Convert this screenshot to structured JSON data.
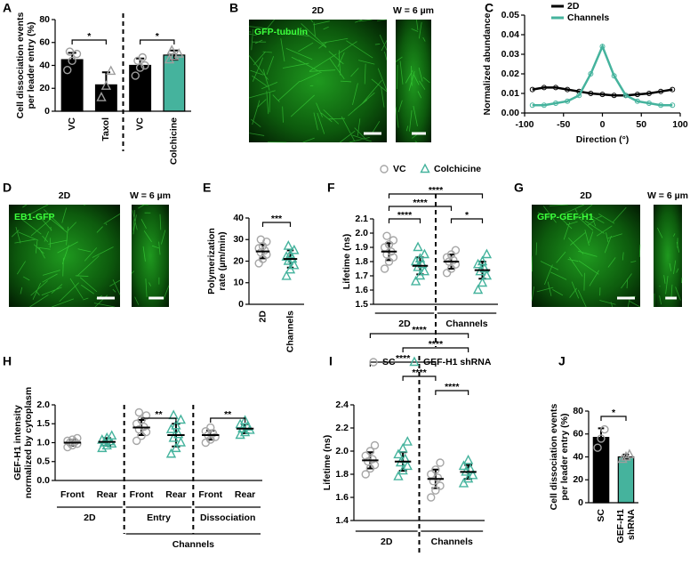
{
  "chart_data": [
    {
      "type": "bar",
      "panel": "A",
      "ylabel": [
        "Cell dissociation events",
        "per leader entry (%)"
      ],
      "ylim": [
        0,
        80
      ],
      "yticks": [
        0,
        20,
        40,
        60,
        80
      ],
      "point_color": "#9e9e9e",
      "groups": [
        {
          "label": "VC",
          "color": "#000000",
          "marker": "circle",
          "mean": 45,
          "sd": 6,
          "points": [
            36,
            44,
            50,
            52
          ]
        },
        {
          "label": "Taxol",
          "color": "#000000",
          "marker": "triangle",
          "mean": 23,
          "sd": 11,
          "points": [
            12,
            22,
            35
          ]
        },
        {
          "label": "VC",
          "color": "#000000",
          "marker": "circle",
          "mean": 40,
          "sd": 6,
          "points": [
            31,
            38,
            40,
            44,
            47
          ]
        },
        {
          "label": "Colchicine",
          "color": "#45b39d",
          "marker": "triangle",
          "mean": 49,
          "sd": 4,
          "points": [
            45,
            48,
            50,
            53
          ]
        }
      ],
      "separators_after": [
        1
      ],
      "brackets": [
        {
          "from": 0,
          "to": 1,
          "label": "*"
        },
        {
          "from": 2,
          "to": 3,
          "label": "*"
        }
      ]
    },
    {
      "type": "image",
      "panel": "B",
      "images": [
        {
          "title": "2D",
          "stain": "GFP-tubulin"
        },
        {
          "title": "W = 6 µm"
        }
      ]
    },
    {
      "type": "line",
      "panel": "C",
      "xlabel": "Direction (°)",
      "ylabel": "Normalized abundance",
      "xlim": [
        -100,
        100
      ],
      "xticks": [
        -100,
        -50,
        0,
        50,
        100
      ],
      "ylim": [
        0,
        0.05
      ],
      "yticks": [
        {
          "value": 0,
          "label": "0.00"
        },
        {
          "value": 0.01,
          "label": "0.01"
        },
        {
          "value": 0.02,
          "label": "0.02"
        },
        {
          "value": 0.03,
          "label": "0.03"
        },
        {
          "value": 0.04,
          "label": "0.04"
        },
        {
          "value": 0.05,
          "label": "0.05"
        }
      ],
      "x": [
        -90,
        -75,
        -60,
        -45,
        -30,
        -15,
        0,
        15,
        30,
        45,
        60,
        75,
        90
      ],
      "series": [
        {
          "name": "2D",
          "color": "#000000",
          "values": [
            0.012,
            0.013,
            0.013,
            0.012,
            0.011,
            0.01,
            0.0095,
            0.009,
            0.009,
            0.0095,
            0.01,
            0.011,
            0.012
          ]
        },
        {
          "name": "Channels",
          "color": "#45b39d",
          "values": [
            0.004,
            0.004,
            0.005,
            0.006,
            0.009,
            0.02,
            0.034,
            0.019,
            0.009,
            0.006,
            0.005,
            0.004,
            0.004
          ]
        }
      ]
    },
    {
      "type": "image",
      "panel": "D",
      "images": [
        {
          "title": "2D",
          "stain": "EB1-GFP"
        },
        {
          "title": "W = 6 µm"
        }
      ]
    },
    {
      "type": "dotplot",
      "panel": "E",
      "ylabel": [
        "Polymerization",
        "rate (µm/min)"
      ],
      "ylim": [
        0,
        40
      ],
      "yticks": [
        0,
        10,
        20,
        30,
        40
      ],
      "groups": [
        {
          "label": "2D",
          "color": "#a6a6a6",
          "marker": "circle",
          "mean": 24.5,
          "sd": 3.2,
          "points": [
            19,
            21,
            23,
            24,
            25,
            26,
            27,
            29,
            30
          ]
        },
        {
          "label": "Channels",
          "color": "#45b39d",
          "marker": "triangle",
          "mean": 21,
          "sd": 4,
          "points": [
            13,
            16,
            18,
            20,
            21,
            22,
            23,
            25,
            27
          ]
        }
      ],
      "brackets": [
        {
          "from": 0,
          "to": 1,
          "label": "***"
        }
      ]
    },
    {
      "type": "dotplot",
      "panel": "F",
      "ylabel": "Lifetime (ns)",
      "ylim": [
        1.5,
        2.1
      ],
      "yticks": [
        1.5,
        1.6,
        1.7,
        1.8,
        1.9,
        {
          "value": 2,
          "label": "2.0"
        },
        2.1
      ],
      "legend": [
        {
          "name": "VC",
          "color": "#a6a6a6",
          "marker": "circle"
        },
        {
          "name": "Colchicine",
          "color": "#45b39d",
          "marker": "triangle"
        }
      ],
      "groups": [
        {
          "color": "#a6a6a6",
          "marker": "circle",
          "mean": 1.87,
          "sd": 0.06,
          "points": [
            1.75,
            1.8,
            1.83,
            1.85,
            1.87,
            1.9,
            1.92,
            1.95,
            1.98
          ]
        },
        {
          "color": "#45b39d",
          "marker": "triangle",
          "mean": 1.77,
          "sd": 0.06,
          "points": [
            1.66,
            1.7,
            1.73,
            1.76,
            1.78,
            1.8,
            1.82,
            1.85,
            1.9
          ]
        },
        {
          "color": "#a6a6a6",
          "marker": "circle",
          "mean": 1.8,
          "sd": 0.05,
          "points": [
            1.72,
            1.75,
            1.78,
            1.8,
            1.81,
            1.83,
            1.85,
            1.88
          ]
        },
        {
          "color": "#45b39d",
          "marker": "triangle",
          "mean": 1.74,
          "sd": 0.06,
          "points": [
            1.6,
            1.65,
            1.7,
            1.73,
            1.75,
            1.78,
            1.8,
            1.85
          ]
        }
      ],
      "separators_after": [
        1
      ],
      "brackets": [
        {
          "from": 0,
          "to": 3,
          "label": "****"
        },
        {
          "from": 0,
          "to": 2,
          "label": "****"
        },
        {
          "from": 0,
          "to": 1,
          "label": "****"
        },
        {
          "from": 2,
          "to": 3,
          "label": "*"
        }
      ],
      "group_labels": [
        {
          "label": "2D",
          "from": 0,
          "to": 1,
          "level": 1
        },
        {
          "label": "Channels",
          "from": 2,
          "to": 3,
          "level": 1
        }
      ]
    },
    {
      "type": "image",
      "panel": "G",
      "images": [
        {
          "title": "2D",
          "stain": "GFP-GEF-H1"
        },
        {
          "title": "W = 6 µm"
        }
      ]
    },
    {
      "type": "dotplot",
      "panel": "H",
      "ylabel": [
        "GEF-H1 intensity",
        "normalized by cytoplasm"
      ],
      "ylim": [
        0,
        2
      ],
      "yticks": [
        {
          "value": 0,
          "label": "0.0"
        },
        0.5,
        {
          "value": 1,
          "label": "1.0"
        },
        1.5,
        {
          "value": 2,
          "label": "2.0"
        }
      ],
      "groups": [
        {
          "label": "Front",
          "color": "#a6a6a6",
          "marker": "circle",
          "mean": 1.0,
          "sd": 0.08,
          "points": [
            0.88,
            0.93,
            0.97,
            1.0,
            1.02,
            1.05,
            1.08,
            1.12
          ]
        },
        {
          "label": "Rear",
          "color": "#45b39d",
          "marker": "triangle",
          "mean": 1.02,
          "sd": 0.1,
          "points": [
            0.85,
            0.92,
            0.97,
            1.0,
            1.03,
            1.07,
            1.12,
            1.18
          ]
        },
        {
          "label": "Front",
          "color": "#a6a6a6",
          "marker": "circle",
          "mean": 1.4,
          "sd": 0.2,
          "points": [
            1.05,
            1.18,
            1.28,
            1.35,
            1.42,
            1.5,
            1.6,
            1.72,
            1.8
          ]
        },
        {
          "label": "Rear",
          "color": "#45b39d",
          "marker": "triangle",
          "mean": 1.2,
          "sd": 0.3,
          "points": [
            0.7,
            0.85,
            1.0,
            1.12,
            1.22,
            1.35,
            1.45,
            1.6,
            1.72
          ]
        },
        {
          "label": "Front",
          "color": "#a6a6a6",
          "marker": "circle",
          "mean": 1.2,
          "sd": 0.12,
          "points": [
            1.0,
            1.08,
            1.15,
            1.2,
            1.25,
            1.3,
            1.4
          ]
        },
        {
          "label": "Rear",
          "color": "#45b39d",
          "marker": "triangle",
          "mean": 1.37,
          "sd": 0.12,
          "points": [
            1.2,
            1.27,
            1.33,
            1.37,
            1.42,
            1.48,
            1.58
          ]
        }
      ],
      "separators_after": [
        1,
        3
      ],
      "brackets": [
        {
          "from": 2,
          "to": 3,
          "label": "**"
        },
        {
          "from": 4,
          "to": 5,
          "label": "**"
        }
      ],
      "group_labels": [
        {
          "label": "2D",
          "from": 0,
          "to": 1,
          "level": 1
        },
        {
          "label": "Entry",
          "from": 2,
          "to": 3,
          "level": 1
        },
        {
          "label": "Dissociation",
          "from": 4,
          "to": 5,
          "level": 1
        },
        {
          "label": "Channels",
          "from": 2,
          "to": 5,
          "level": 2
        }
      ]
    },
    {
      "type": "dotplot",
      "panel": "I",
      "ylabel": "Lifetime (ns)",
      "ylim": [
        1.4,
        2.4
      ],
      "yticks": [
        1.4,
        1.6,
        1.8,
        {
          "value": 2,
          "label": "2.0"
        },
        2.2,
        2.4
      ],
      "legend": [
        {
          "name": "SC",
          "color": "#a6a6a6",
          "marker": "circle"
        },
        {
          "name": "GEF-H1 shRNA",
          "color": "#45b39d",
          "marker": "triangle"
        }
      ],
      "groups": [
        {
          "color": "#a6a6a6",
          "marker": "circle",
          "mean": 1.92,
          "sd": 0.07,
          "points": [
            1.8,
            1.85,
            1.88,
            1.91,
            1.93,
            1.96,
            2.0,
            2.05
          ]
        },
        {
          "color": "#45b39d",
          "marker": "triangle",
          "mean": 1.91,
          "sd": 0.08,
          "points": [
            1.78,
            1.83,
            1.87,
            1.9,
            1.93,
            1.97,
            2.02,
            2.08
          ]
        },
        {
          "color": "#a6a6a6",
          "marker": "circle",
          "mean": 1.76,
          "sd": 0.08,
          "points": [
            1.6,
            1.66,
            1.7,
            1.74,
            1.77,
            1.8,
            1.84,
            1.9
          ]
        },
        {
          "color": "#45b39d",
          "marker": "triangle",
          "mean": 1.82,
          "sd": 0.06,
          "points": [
            1.72,
            1.76,
            1.79,
            1.82,
            1.84,
            1.87,
            1.92
          ]
        }
      ],
      "separators_after": [
        1
      ],
      "brackets": [
        {
          "from": 0,
          "to": 3,
          "label": "****"
        },
        {
          "from": 1,
          "to": 3,
          "label": "****"
        },
        {
          "from": 0,
          "to": 2,
          "label": "****"
        },
        {
          "from": 1,
          "to": 2,
          "label": "****"
        },
        {
          "from": 2,
          "to": 3,
          "label": "****"
        }
      ],
      "group_labels": [
        {
          "label": "2D",
          "from": 0,
          "to": 1,
          "level": 1
        },
        {
          "label": "Channels",
          "from": 2,
          "to": 3,
          "level": 1
        }
      ]
    },
    {
      "type": "bar",
      "panel": "J",
      "ylabel": [
        "Cell dissociation events",
        "per leader entry (%)"
      ],
      "ylim": [
        0,
        80
      ],
      "yticks": [
        0,
        20,
        40,
        60,
        80
      ],
      "point_color": "#9e9e9e",
      "groups": [
        {
          "label": "SC",
          "color": "#000000",
          "marker": "circle",
          "mean": 57,
          "sd": 8,
          "points": [
            48,
            56,
            64
          ]
        },
        {
          "label": [
            "GEF-H1",
            "shRNA"
          ],
          "color": "#45b39d",
          "marker": "triangle",
          "mean": 40,
          "sd": 2,
          "points": [
            38,
            40,
            42
          ]
        }
      ],
      "brackets": [
        {
          "from": 0,
          "to": 1,
          "label": "*"
        }
      ]
    }
  ]
}
